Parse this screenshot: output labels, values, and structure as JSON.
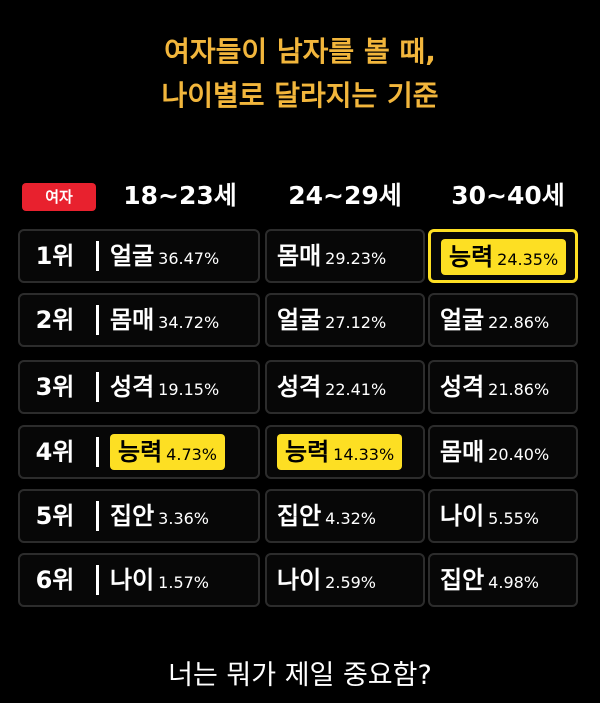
{
  "title": {
    "line1": "여자들이 남자를 볼 때,",
    "line2": "나이별로 달라지는 기준"
  },
  "header": {
    "badge": "여자",
    "ages": [
      "18~23세",
      "24~29세",
      "30~40세"
    ]
  },
  "rows": [
    {
      "rank": "1위",
      "cols": [
        {
          "word": "얼굴",
          "pct": "36.47%"
        },
        {
          "word": "몸매",
          "pct": "29.23%"
        },
        {
          "word": "능력",
          "pct": "24.35%",
          "highlight": true
        }
      ]
    },
    {
      "rank": "2위",
      "cols": [
        {
          "word": "몸매",
          "pct": "34.72%"
        },
        {
          "word": "얼굴",
          "pct": "27.12%"
        },
        {
          "word": "얼굴",
          "pct": "22.86%"
        }
      ]
    },
    {
      "rank": "3위",
      "cols": [
        {
          "word": "성격",
          "pct": "19.15%"
        },
        {
          "word": "성격",
          "pct": "22.41%"
        },
        {
          "word": "성격",
          "pct": "21.86%"
        }
      ]
    },
    {
      "rank": "4위",
      "cols": [
        {
          "word": "능력",
          "pct": "4.73%",
          "highlight": true
        },
        {
          "word": "능력",
          "pct": "14.33%",
          "highlight": true
        },
        {
          "word": "몸매",
          "pct": "20.40%"
        }
      ]
    },
    {
      "rank": "5위",
      "cols": [
        {
          "word": "집안",
          "pct": "3.36%"
        },
        {
          "word": "집안",
          "pct": "4.32%"
        },
        {
          "word": "나이",
          "pct": "5.55%"
        }
      ]
    },
    {
      "rank": "6위",
      "cols": [
        {
          "word": "나이",
          "pct": "1.57%"
        },
        {
          "word": "나이",
          "pct": "2.59%"
        },
        {
          "word": "집안",
          "pct": "4.98%"
        }
      ]
    }
  ],
  "question": "너는 뭐가 제일 중요함?",
  "colors": {
    "title": "#f2b63c",
    "highlight": "#fddf23",
    "badge": "#e8212e"
  }
}
